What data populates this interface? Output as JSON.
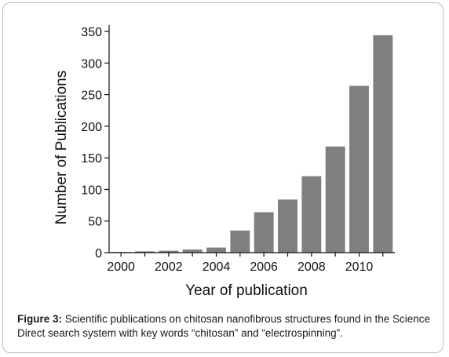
{
  "chart_data": {
    "type": "bar",
    "categories": [
      "2000",
      "2001",
      "2002",
      "2003",
      "2004",
      "2005",
      "2006",
      "2007",
      "2008",
      "2009",
      "2010",
      "2011"
    ],
    "values": [
      1,
      2,
      3,
      5,
      8,
      35,
      64,
      84,
      121,
      168,
      264,
      344
    ],
    "xlabel": "Year of publication",
    "ylabel": "Number of Publications",
    "ylim": [
      0,
      360
    ],
    "yticks": [
      0,
      50,
      100,
      150,
      200,
      250,
      300,
      350
    ],
    "xtick_labels": [
      "2000",
      "2002",
      "2004",
      "2006",
      "2008",
      "2010"
    ],
    "bar_color": "#7f7f7f",
    "grid": false
  },
  "caption": {
    "label": "Figure 3:",
    "text": " Scientific publications on chitosan nanofibrous structures found in the Science Direct search system with key words “chitosan” and “electrospinning”."
  }
}
